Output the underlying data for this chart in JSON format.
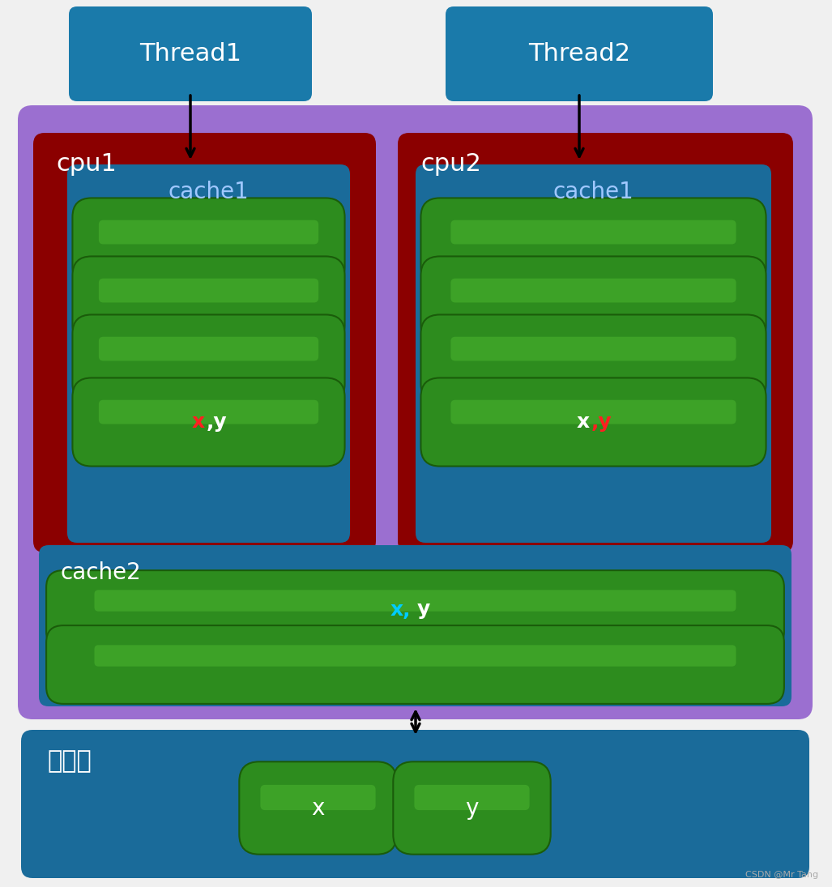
{
  "bg_color": "#f0f0f0",
  "thread1_label": "Thread1",
  "thread2_label": "Thread2",
  "thread_bg": "#1a7aaa",
  "thread_text_color": "#ffffff",
  "cpu_bg": "#8b0000",
  "cpu_text_color": "#ffffff",
  "cache1_inner_bg": "#1a6b9a",
  "cache1_label_color": "#a0c8ff",
  "cache_bar_color": "#2d8c1e",
  "cache_bar_highlight": "#4db830",
  "purple_bg": "#9b6fd0",
  "cache2_bg": "#1a6b9a",
  "cache2_label_color": "#ffffff",
  "memory_bg": "#1a6b9a",
  "memory_label": "主内存",
  "cache1_label": "cache1",
  "cache2_label": "cache2",
  "cpu1_label": "cpu1",
  "cpu2_label": "cpu2",
  "xy_color_red": "#ff2020",
  "xy_color_white": "#ffffff",
  "xy_color_cyan": "#00ccff",
  "memory_x_label": "x",
  "memory_y_label": "y",
  "arrow_color": "#000000",
  "watermark": "CSDN @Mr Tang"
}
